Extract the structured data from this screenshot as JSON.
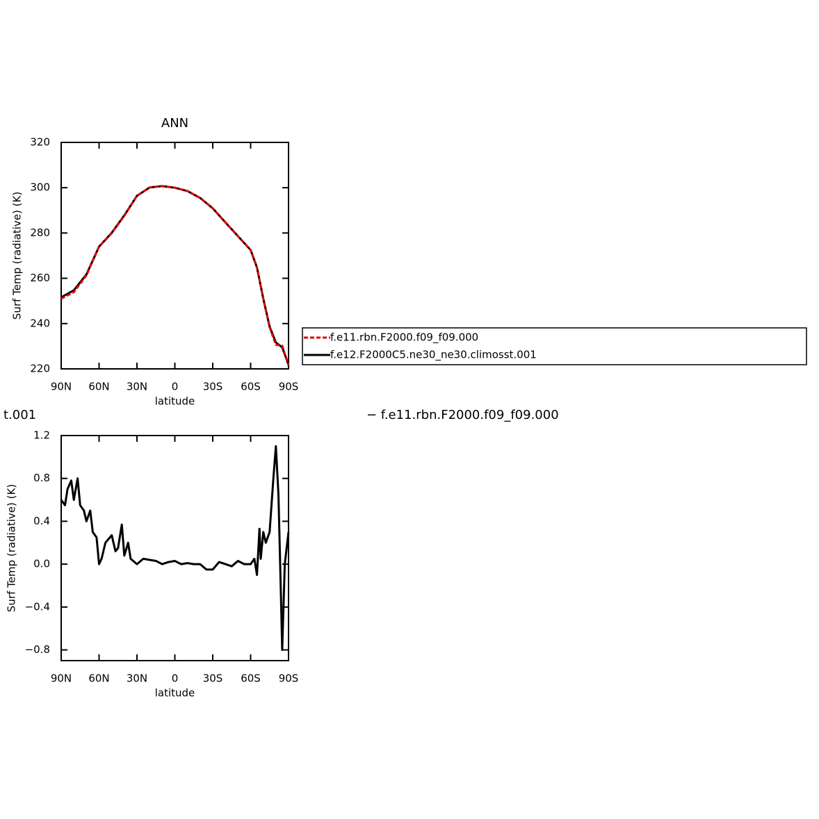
{
  "chart_data": [
    {
      "type": "line",
      "title": "ANN",
      "xlabel": "latitude",
      "ylabel": "Surf Temp (radiative) (K)",
      "x": [
        90,
        80,
        70,
        60,
        50,
        40,
        30,
        20,
        10,
        0,
        -10,
        -20,
        -30,
        -40,
        -50,
        -60,
        -65,
        -70,
        -75,
        -80,
        -85,
        -90
      ],
      "xlim": [
        90,
        -90
      ],
      "xticks": [
        {
          "value": 90,
          "label": "90N"
        },
        {
          "value": 60,
          "label": "60N"
        },
        {
          "value": 30,
          "label": "30N"
        },
        0,
        {
          "value": -30,
          "label": "30S"
        },
        {
          "value": -60,
          "label": "60S"
        },
        {
          "value": -90,
          "label": "90S"
        }
      ],
      "ylim": [
        220,
        320
      ],
      "yticks": [
        220,
        240,
        260,
        280,
        300,
        320
      ],
      "legend": "right",
      "series": [
        {
          "name": "f.e11.rbn.F2000.f09_f09.000",
          "color": "#e00000",
          "linestyle": "dashed",
          "values": [
            251.0,
            253.9,
            261.3,
            274.0,
            279.9,
            287.6,
            296.4,
            300.1,
            300.7,
            300.0,
            298.5,
            295.5,
            290.9,
            284.7,
            278.6,
            272.5,
            264.8,
            251.0,
            238.4,
            230.6,
            230.3,
            221.5
          ]
        },
        {
          "name": "f.e12.F2000C5.ne30_ne30.climosst.001",
          "color": "#000000",
          "linestyle": "solid",
          "values": [
            251.6,
            254.7,
            261.7,
            274.0,
            280.1,
            287.8,
            296.4,
            300.1,
            300.7,
            300.0,
            298.5,
            295.5,
            290.9,
            284.7,
            278.6,
            272.5,
            264.8,
            251.0,
            238.7,
            231.7,
            229.5,
            221.8
          ]
        }
      ]
    },
    {
      "type": "line",
      "title_parts": [
        "t.001",
        "− f.e11.rbn.F2000.f09_f09.000"
      ],
      "xlabel": "latitude",
      "ylabel": "Surf Temp (radiative) (K)",
      "x": [
        90,
        87,
        85,
        82,
        80,
        77,
        75,
        72,
        70,
        67,
        65,
        62,
        60,
        58,
        55,
        50,
        47,
        45,
        42,
        40,
        37,
        35,
        30,
        25,
        20,
        15,
        10,
        5,
        0,
        -5,
        -10,
        -15,
        -20,
        -25,
        -30,
        -35,
        -40,
        -45,
        -50,
        -55,
        -60,
        -63,
        -65,
        -67,
        -68,
        -70,
        -72,
        -75,
        -78,
        -80,
        -82,
        -84,
        -85,
        -87,
        -88,
        -90
      ],
      "xlim": [
        90,
        -90
      ],
      "xticks": [
        {
          "value": 90,
          "label": "90N"
        },
        {
          "value": 60,
          "label": "60N"
        },
        {
          "value": 30,
          "label": "30N"
        },
        0,
        {
          "value": -30,
          "label": "30S"
        },
        {
          "value": -60,
          "label": "60S"
        },
        {
          "value": -90,
          "label": "90S"
        }
      ],
      "ylim": [
        -0.9,
        1.2
      ],
      "yticks": [
        {
          "value": -0.8,
          "label": "−0.8"
        },
        {
          "value": -0.4,
          "label": "−0.4"
        },
        {
          "value": 0,
          "label": "0.0"
        },
        0.4,
        0.8,
        1.2
      ],
      "series": [
        {
          "color": "#000000",
          "values": [
            0.6,
            0.55,
            0.7,
            0.78,
            0.6,
            0.8,
            0.55,
            0.5,
            0.4,
            0.5,
            0.3,
            0.25,
            0.0,
            0.05,
            0.2,
            0.27,
            0.12,
            0.15,
            0.37,
            0.08,
            0.2,
            0.05,
            0.0,
            0.05,
            0.04,
            0.03,
            0.0,
            0.02,
            0.03,
            0.0,
            0.01,
            0.0,
            0.0,
            -0.05,
            -0.05,
            0.02,
            0.0,
            -0.02,
            0.03,
            0.0,
            0.0,
            0.05,
            -0.1,
            0.33,
            0.05,
            0.3,
            0.2,
            0.3,
            0.8,
            1.1,
            0.65,
            -0.3,
            -0.8,
            0.0,
            0.1,
            0.3
          ]
        }
      ]
    }
  ]
}
